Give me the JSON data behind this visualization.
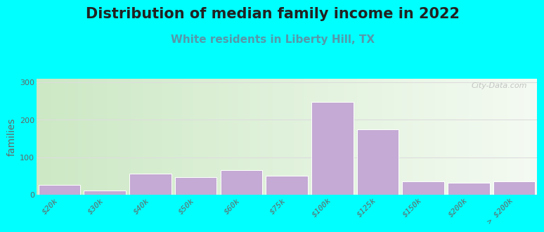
{
  "title": "Distribution of median family income in 2022",
  "subtitle": "White residents in Liberty Hill, TX",
  "ylabel": "families",
  "background_color": "#00FFFF",
  "plot_bg_gradient_left": "#cce8c4",
  "plot_bg_gradient_right": "#f0f8ee",
  "bar_color": "#c4aad4",
  "bar_edge_color": "#ffffff",
  "categories": [
    "$20k",
    "$30k",
    "$40k",
    "$50k",
    "$60k",
    "$75k",
    "$100k",
    "$125k",
    "$150k",
    "$200k",
    "> $200k"
  ],
  "values": [
    25,
    10,
    55,
    47,
    65,
    50,
    248,
    175,
    35,
    32,
    35
  ],
  "ylim": [
    0,
    310
  ],
  "yticks": [
    0,
    100,
    200,
    300
  ],
  "watermark": "City-Data.com",
  "title_fontsize": 15,
  "subtitle_fontsize": 11,
  "ylabel_fontsize": 10,
  "tick_fontsize": 8,
  "grid_color": "#dddddd"
}
